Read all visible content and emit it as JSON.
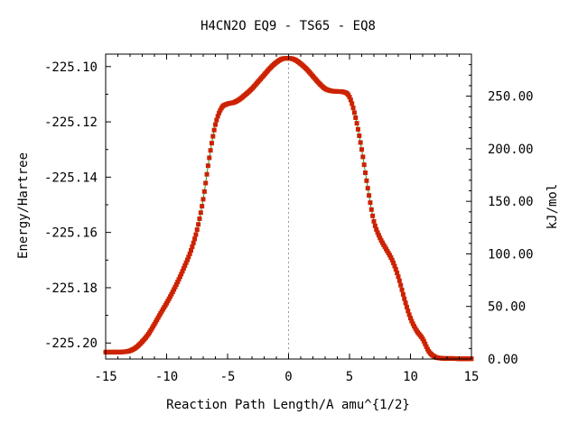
{
  "chart_data": {
    "type": "line",
    "title": "H4CN2O   EQ9 - TS65 - EQ8",
    "xlabel": "Reaction Path Length/A amu^{1/2}",
    "ylabel": "Energy/Hartree",
    "y2label": "kJ/mol",
    "xlim": [
      -15,
      15
    ],
    "ylim": [
      -225.2058,
      -225.0955
    ],
    "y2lim": [
      0,
      290
    ],
    "x_ticks": [
      -15,
      -10,
      -5,
      0,
      5,
      10,
      15
    ],
    "x_tick_labels": [
      "-15",
      "-10",
      "-5",
      "0",
      "5",
      "10",
      "15"
    ],
    "y_ticks": [
      -225.1,
      -225.12,
      -225.14,
      -225.16,
      -225.18,
      -225.2
    ],
    "y_tick_labels": [
      "-225.10",
      "-225.12",
      "-225.14",
      "-225.16",
      "-225.18",
      "-225.20"
    ],
    "y2_ticks": [
      0,
      50,
      100,
      150,
      200,
      250
    ],
    "y2_tick_labels": [
      "0.00",
      "50.00",
      "100.00",
      "150.00",
      "200.00",
      "250.00"
    ],
    "ts_marker_x": 0,
    "grid": false,
    "colors": {
      "line": "#2a9a2a",
      "points": "#cc2200",
      "marker_line": "#999999"
    },
    "series": [
      {
        "x": [
          -15.0,
          -14.5,
          -14.0,
          -13.5,
          -13.0,
          -12.5,
          -12.0,
          -11.5,
          -11.0,
          -10.5,
          -10.0,
          -9.5,
          -9.0,
          -8.5,
          -8.0,
          -7.5,
          -7.0,
          -6.5,
          -6.0,
          -5.5,
          -5.0,
          -4.5,
          -4.0,
          -3.5,
          -3.0,
          -2.5,
          -2.0,
          -1.5,
          -1.0,
          -0.5,
          0.0,
          0.5,
          1.0,
          1.5,
          2.0,
          2.5,
          3.0,
          3.5,
          4.0,
          4.5,
          5.0,
          5.5,
          6.0,
          6.5,
          7.0,
          7.5,
          8.0,
          8.5,
          9.0,
          9.5,
          10.0,
          10.5,
          11.0,
          11.5,
          12.0,
          12.5,
          13.0,
          13.5,
          14.0,
          14.5,
          15.0
        ],
        "y": [
          -225.2033,
          -225.2033,
          -225.2033,
          -225.2032,
          -225.2028,
          -225.2016,
          -225.1995,
          -225.1968,
          -225.1932,
          -225.1893,
          -225.1856,
          -225.1815,
          -225.177,
          -225.172,
          -225.1665,
          -225.159,
          -225.148,
          -225.133,
          -225.121,
          -225.115,
          -225.1135,
          -225.113,
          -225.1118,
          -225.11,
          -225.108,
          -225.1055,
          -225.103,
          -225.1005,
          -225.0985,
          -225.0972,
          -225.097,
          -225.0975,
          -225.099,
          -225.101,
          -225.1035,
          -225.106,
          -225.108,
          -225.1088,
          -225.109,
          -225.1092,
          -225.111,
          -225.1185,
          -225.13,
          -225.144,
          -225.156,
          -225.162,
          -225.166,
          -225.17,
          -225.176,
          -225.184,
          -225.191,
          -225.1955,
          -225.1985,
          -225.203,
          -225.205,
          -225.2055,
          -225.2056,
          -225.2056,
          -225.2057,
          -225.2057,
          -225.2057
        ]
      }
    ]
  }
}
